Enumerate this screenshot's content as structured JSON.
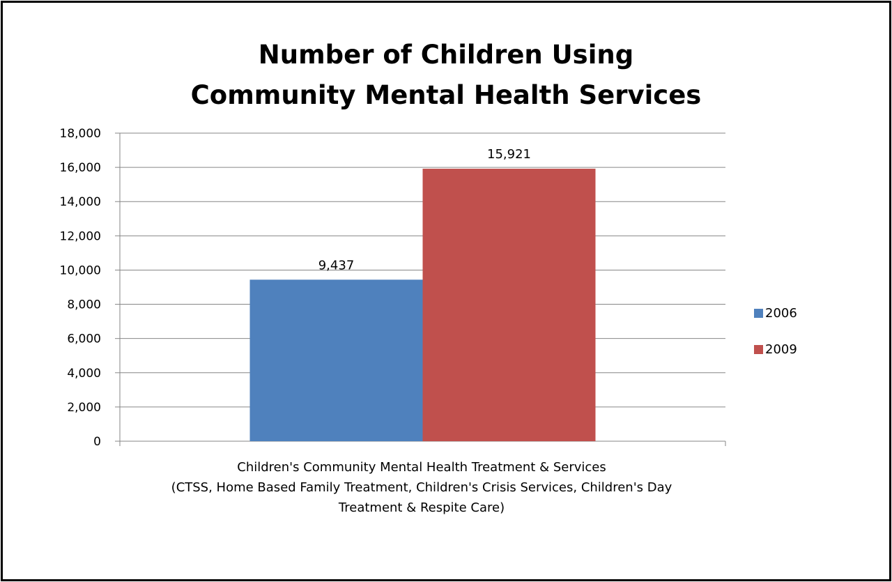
{
  "chart_data": {
    "type": "bar",
    "title_lines": [
      "Number of Children Using",
      "Community Mental Health Services"
    ],
    "category_lines": [
      "Children's Community Mental Health Treatment & Services",
      "(CTSS, Home Based Family Treatment, Children's Crisis Services, Children's Day",
      "Treatment & Respite Care)"
    ],
    "series": [
      {
        "name": "2006",
        "color": "#4F81BD",
        "value": 9437,
        "label": "9,437"
      },
      {
        "name": "2009",
        "color": "#C0504D",
        "value": 15921,
        "label": "15,921"
      }
    ],
    "ylim": [
      0,
      18000
    ],
    "yticks": [
      {
        "value": 0,
        "label": "0"
      },
      {
        "value": 2000,
        "label": "2,000"
      },
      {
        "value": 4000,
        "label": "4,000"
      },
      {
        "value": 6000,
        "label": "6,000"
      },
      {
        "value": 8000,
        "label": "8,000"
      },
      {
        "value": 10000,
        "label": "10,000"
      },
      {
        "value": 12000,
        "label": "12,000"
      },
      {
        "value": 14000,
        "label": "14,000"
      },
      {
        "value": 16000,
        "label": "16,000"
      },
      {
        "value": 18000,
        "label": "18,000"
      }
    ],
    "grid": true,
    "legend_position": "right"
  }
}
